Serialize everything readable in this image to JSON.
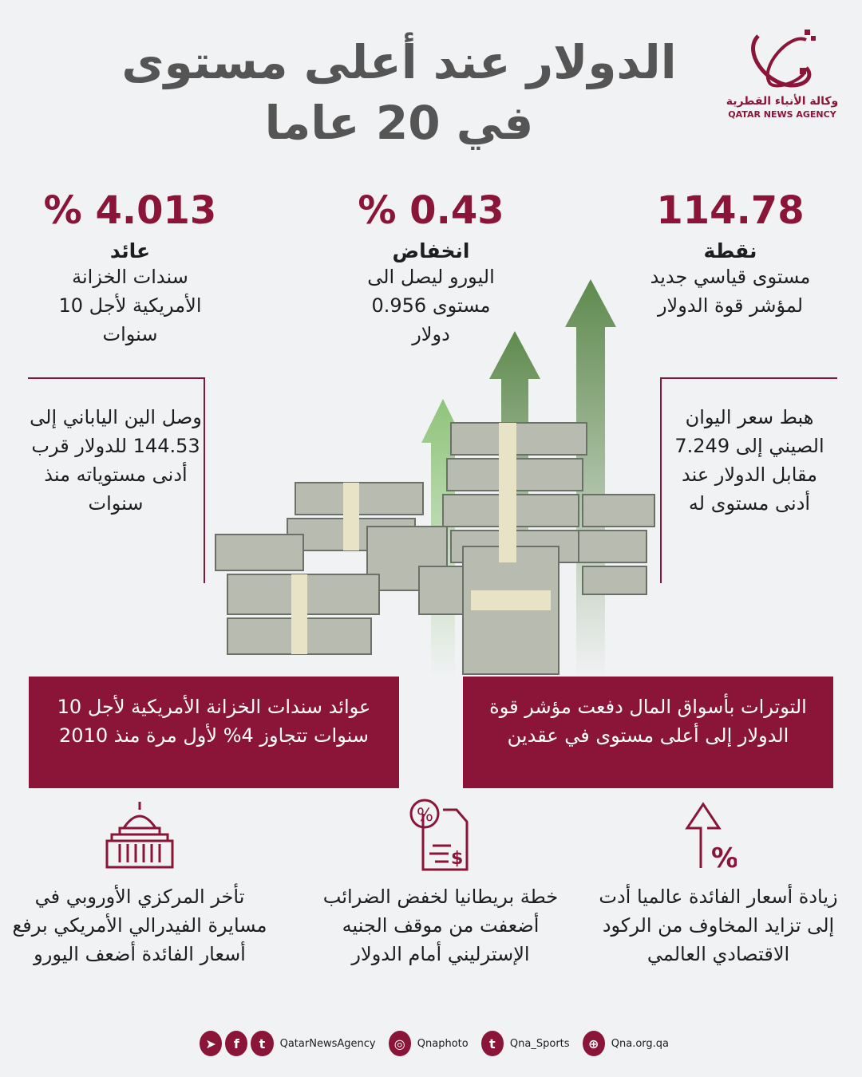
{
  "title": {
    "line1": "الدولار عند أعلى مستوى",
    "line2": "في 20 عاما"
  },
  "logo": {
    "ar": "وكالة الأنباء القطرية",
    "en": "QATAR NEWS AGENCY"
  },
  "stats": [
    {
      "value": "114.78",
      "label": "نقطة",
      "desc": "مستوى قياسي جديد لمؤشر قوة الدولار"
    },
    {
      "value": "% 0.43",
      "label": "انخفاض",
      "desc": "اليورو ليصل الى مستوى 0.956 دولار"
    },
    {
      "value": "% 4.013",
      "label": "عائد",
      "desc": "سندات الخزانة الأمريكية لأجل 10 سنوات"
    }
  ],
  "boxes": {
    "right": "هبط سعر اليوان الصيني إلى 7.249 مقابل الدولار عند أدنى مستوى له",
    "left": "وصل الين الياباني إلى 144.53 للدولار قرب أدنى مستوياته منذ سنوات"
  },
  "banners": {
    "right": "التوترات بأسواق المال دفعت مؤشر قوة الدولار إلى أعلى مستوى في عقدين",
    "left": "عوائد سندات الخزانة الأمريكية لأجل 10 سنوات تتجاوز 4% لأول مرة منذ 2010"
  },
  "points": [
    {
      "icon": "arrow-up-percent-icon",
      "text": "زيادة أسعار الفائدة عالميا أدت إلى تزايد المخاوف من الركود الاقتصادي العالمي"
    },
    {
      "icon": "tax-document-icon",
      "text": "خطة بريطانيا لخفض الضرائب أضعفت من موقف الجنيه الإسترليني أمام الدولار"
    },
    {
      "icon": "central-bank-icon",
      "text": "تأخر المركزي الأوروبي في مسايرة الفيدرالي الأمريكي برفع أسعار الفائدة أضعف اليورو"
    }
  ],
  "footer": {
    "main": "QatarNewsAgency",
    "instagram": "Qnaphoto",
    "twitter2": "Qna_Sports",
    "web": "Qna.org.qa"
  },
  "colors": {
    "brand": "#8a1538",
    "background": "#f1f2f4",
    "arrow": "#5f8a4e"
  }
}
